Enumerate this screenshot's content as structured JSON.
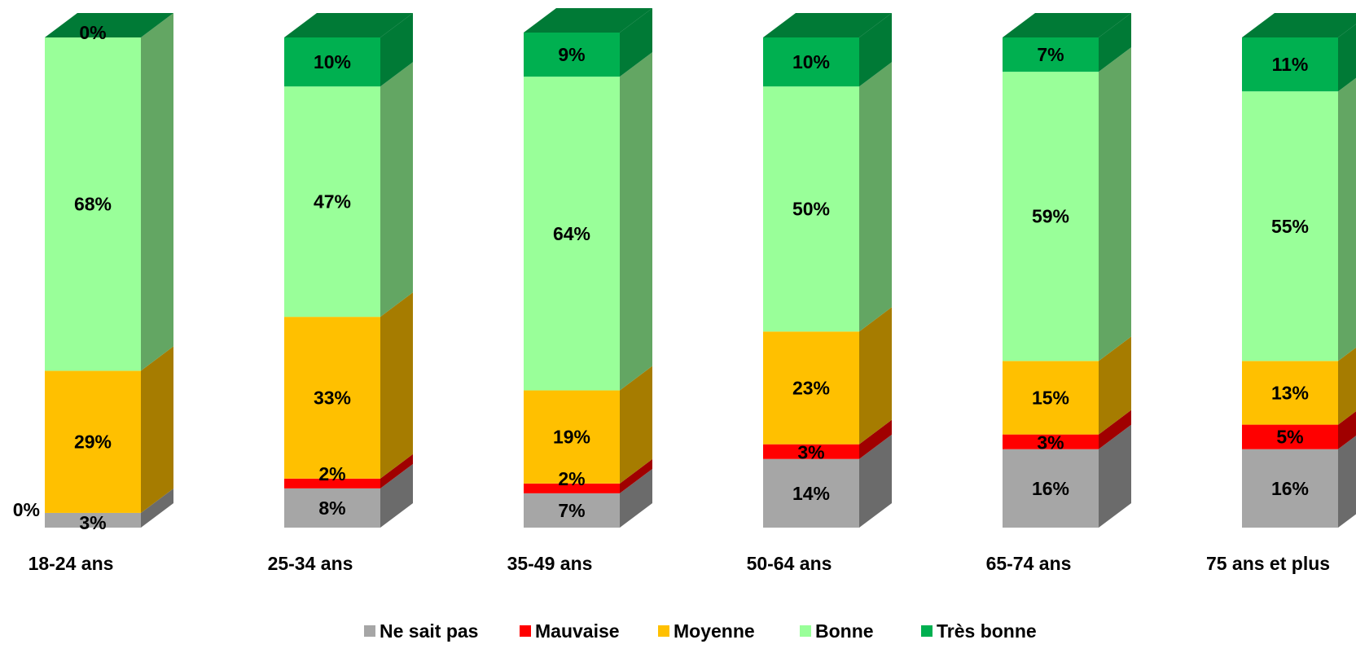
{
  "chart_data": {
    "type": "bar",
    "stacked": true,
    "percent_stacked": true,
    "three_d": true,
    "title": "",
    "xlabel": "",
    "ylabel": "",
    "ylim": [
      0,
      100
    ],
    "grid": false,
    "legend_position": "bottom",
    "categories": [
      "18-24 ans",
      "25-34 ans",
      "35-49 ans",
      "50-64 ans",
      "65-74 ans",
      "75 ans et plus"
    ],
    "series": [
      {
        "name": "Ne sait pas",
        "color": "#a6a6a6",
        "side_color": "#6b6b6b",
        "values": [
          3,
          8,
          7,
          14,
          16,
          16
        ]
      },
      {
        "name": "Mauvaise",
        "color": "#ff0000",
        "side_color": "#a00000",
        "values": [
          0,
          2,
          2,
          3,
          3,
          5
        ]
      },
      {
        "name": "Moyenne",
        "color": "#ffc000",
        "side_color": "#a67c00",
        "values": [
          29,
          33,
          19,
          23,
          15,
          13
        ]
      },
      {
        "name": "Bonne",
        "color": "#99ff99",
        "side_color": "#63a663",
        "values": [
          68,
          47,
          64,
          50,
          59,
          55
        ]
      },
      {
        "name": "Très bonne",
        "color": "#00b050",
        "side_color": "#007a36",
        "values": [
          0,
          10,
          9,
          10,
          7,
          11
        ]
      }
    ],
    "data_labels": [
      [
        "3%",
        "0%",
        "29%",
        "68%",
        "0%"
      ],
      [
        "8%",
        "2%",
        "33%",
        "47%",
        "10%"
      ],
      [
        "7%",
        "2%",
        "19%",
        "64%",
        "9%"
      ],
      [
        "14%",
        "3%",
        "23%",
        "50%",
        "10%"
      ],
      [
        "16%",
        "3%",
        "15%",
        "59%",
        "7%"
      ],
      [
        "16%",
        "5%",
        "13%",
        "55%",
        "11%"
      ]
    ]
  }
}
